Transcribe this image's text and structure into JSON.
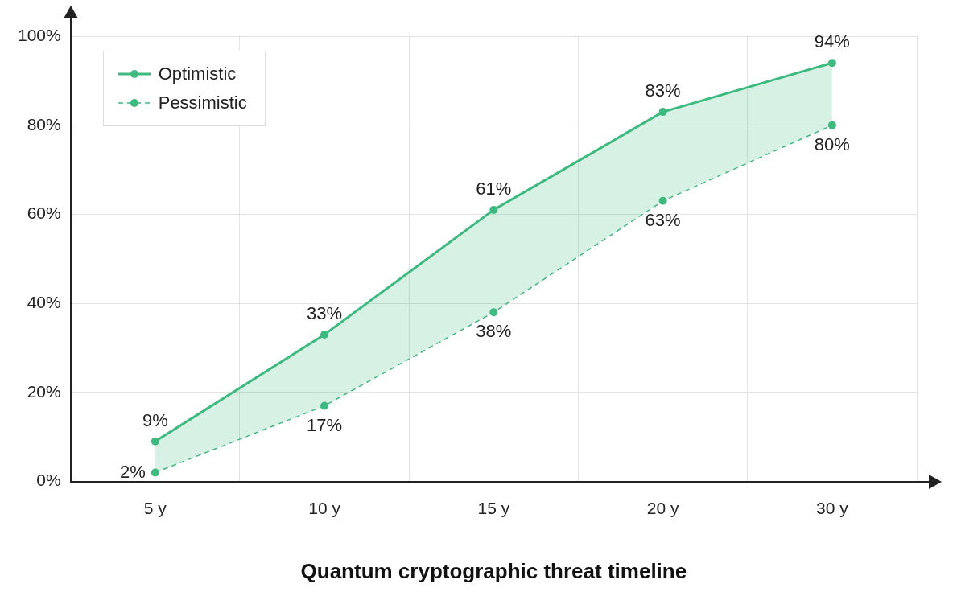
{
  "chart_data": {
    "type": "line",
    "xlabel": "Quantum cryptographic threat timeline",
    "categories": [
      "5 y",
      "10 y",
      "15 y",
      "20 y",
      "30 y"
    ],
    "series": [
      {
        "name": "Optimistic",
        "color": "#3dbb7f",
        "values": [
          9,
          33,
          61,
          83,
          94
        ],
        "line_style": "solid",
        "value_labels": [
          "9%",
          "33%",
          "61%",
          "83%",
          "94%"
        ],
        "lower": [
          2,
          17,
          38,
          63,
          80
        ],
        "upper": [
          9,
          33,
          61,
          83,
          94
        ]
      },
      {
        "name": "Pessimistic",
        "color": "#3dbb7f",
        "values": [
          2,
          17,
          38,
          63,
          80
        ],
        "line_style": "dashed",
        "value_labels": [
          "2%",
          "17%",
          "38%",
          "63%",
          "80%"
        ]
      }
    ],
    "ylim": [
      0,
      100
    ],
    "yticks": [
      {
        "value": 0,
        "label": "0%"
      },
      {
        "value": 20,
        "label": "20%"
      },
      {
        "value": 40,
        "label": "40%"
      },
      {
        "value": 60,
        "label": "60%"
      },
      {
        "value": 80,
        "label": "80%"
      },
      {
        "value": 100,
        "label": "100%"
      }
    ],
    "grid": true,
    "legend": "top left",
    "marker": "circle"
  }
}
